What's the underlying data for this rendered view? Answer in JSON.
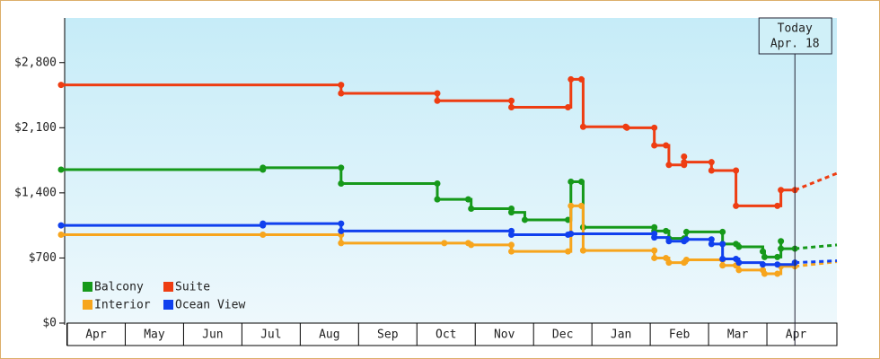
{
  "chart_data": {
    "type": "step-line",
    "xlim": [
      -0.1,
      13.2
    ],
    "xticks": [
      {
        "value": 0.5,
        "label": "Apr"
      },
      {
        "value": 1.5,
        "label": "May"
      },
      {
        "value": 2.5,
        "label": "Jun"
      },
      {
        "value": 3.5,
        "label": "Jul"
      },
      {
        "value": 4.5,
        "label": "Aug"
      },
      {
        "value": 5.5,
        "label": "Sep"
      },
      {
        "value": 6.5,
        "label": "Oct"
      },
      {
        "value": 7.5,
        "label": "Nov"
      },
      {
        "value": 8.5,
        "label": "Dec"
      },
      {
        "value": 9.5,
        "label": "Jan"
      },
      {
        "value": 10.5,
        "label": "Feb"
      },
      {
        "value": 11.5,
        "label": "Mar"
      },
      {
        "value": 12.5,
        "label": "Apr"
      }
    ],
    "ylim": [
      0,
      3280
    ],
    "yticks": [
      {
        "value": 0,
        "label": "$0"
      },
      {
        "value": 700,
        "label": "$700"
      },
      {
        "value": 1400,
        "label": "$1,400"
      },
      {
        "value": 2100,
        "label": "$2,100"
      },
      {
        "value": 2800,
        "label": "$2,800"
      }
    ],
    "legend": "lower left",
    "annotation": {
      "x": 12.48,
      "lines": [
        "Today",
        "Apr. 18"
      ]
    },
    "series": [
      {
        "name": "Balcony",
        "color": "#16991a",
        "x": [
          -0.1,
          3.36,
          3.36,
          4.7,
          4.7,
          6.35,
          6.35,
          6.88,
          6.93,
          7.62,
          7.62,
          7.85,
          8.59,
          8.64,
          8.82,
          8.85,
          10.07,
          10.07,
          10.27,
          10.32,
          10.58,
          10.62,
          11.24,
          11.24,
          11.47,
          11.52,
          11.93,
          11.96,
          12.18,
          12.24,
          12.24,
          12.48,
          13.2
        ],
        "values": [
          1650,
          1650,
          1670,
          1670,
          1500,
          1500,
          1330,
          1330,
          1230,
          1230,
          1190,
          1110,
          1110,
          1520,
          1520,
          1030,
          1030,
          990,
          990,
          910,
          910,
          980,
          980,
          850,
          850,
          820,
          770,
          710,
          710,
          880,
          800,
          800,
          840
        ]
      },
      {
        "name": "Suite",
        "color": "#ee3d12",
        "x": [
          -0.1,
          4.7,
          4.7,
          6.35,
          6.35,
          7.62,
          7.62,
          8.59,
          8.64,
          8.82,
          8.85,
          9.58,
          9.6,
          10.07,
          10.07,
          10.27,
          10.32,
          10.58,
          10.58,
          10.58,
          11.05,
          11.05,
          11.47,
          11.47,
          12.18,
          12.24,
          12.48,
          13.2
        ],
        "values": [
          2560,
          2560,
          2470,
          2470,
          2390,
          2390,
          2320,
          2320,
          2620,
          2620,
          2110,
          2110,
          2100,
          2100,
          1910,
          1910,
          1700,
          1700,
          1790,
          1730,
          1730,
          1640,
          1640,
          1260,
          1260,
          1430,
          1430,
          1610
        ]
      },
      {
        "name": "Interior",
        "color": "#f7a51d",
        "x": [
          -0.1,
          3.36,
          4.7,
          4.7,
          6.47,
          6.88,
          6.93,
          7.62,
          7.62,
          8.59,
          8.64,
          8.82,
          8.85,
          10.07,
          10.07,
          10.27,
          10.32,
          10.58,
          10.62,
          11.24,
          11.24,
          11.47,
          11.52,
          11.93,
          11.96,
          12.18,
          12.24,
          12.48,
          13.2
        ],
        "values": [
          950,
          950,
          950,
          860,
          860,
          860,
          840,
          840,
          770,
          770,
          1260,
          1260,
          780,
          780,
          700,
          700,
          650,
          650,
          680,
          680,
          620,
          620,
          570,
          570,
          530,
          530,
          610,
          610,
          660
        ]
      },
      {
        "name": "Ocean View",
        "color": "#1040ee",
        "x": [
          -0.1,
          3.36,
          3.36,
          4.7,
          4.7,
          7.62,
          7.62,
          8.59,
          8.64,
          10.07,
          10.07,
          10.32,
          10.58,
          10.62,
          11.05,
          11.05,
          11.24,
          11.24,
          11.47,
          11.52,
          11.93,
          12.18,
          12.48,
          13.2
        ],
        "values": [
          1050,
          1050,
          1070,
          1070,
          990,
          990,
          950,
          950,
          960,
          960,
          920,
          880,
          880,
          900,
          900,
          850,
          850,
          690,
          690,
          650,
          630,
          630,
          650,
          670
        ]
      }
    ]
  }
}
